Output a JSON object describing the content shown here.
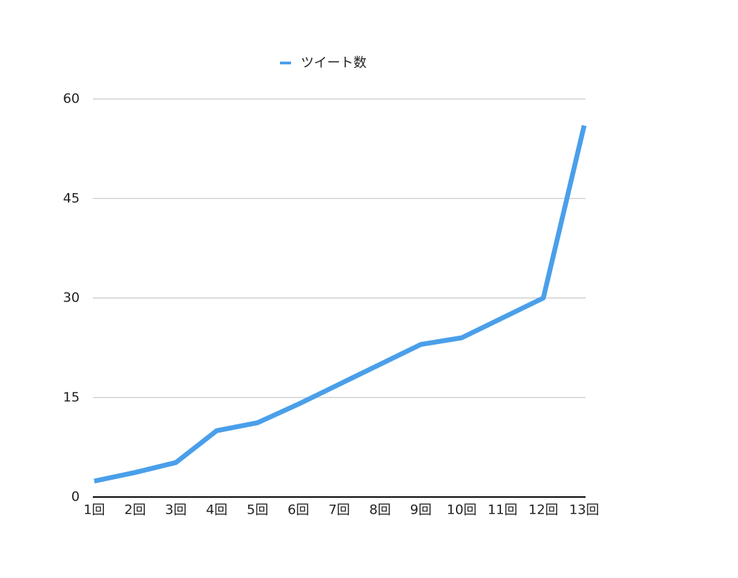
{
  "chart_data": {
    "type": "line",
    "categories": [
      "1回",
      "2回",
      "3回",
      "4回",
      "5回",
      "6回",
      "7回",
      "8回",
      "9回",
      "10回",
      "11回",
      "12回",
      "13回"
    ],
    "series": [
      {
        "name": "ツイート数",
        "color": "#4a9fea",
        "values": [
          2.4,
          3.7,
          5.2,
          10,
          11.2,
          14,
          17,
          20,
          23,
          24,
          27,
          30,
          56
        ]
      }
    ],
    "ylim": [
      0,
      60
    ],
    "yticks": [
      0,
      15,
      30,
      45,
      60
    ],
    "grid": true,
    "legend": "top"
  }
}
